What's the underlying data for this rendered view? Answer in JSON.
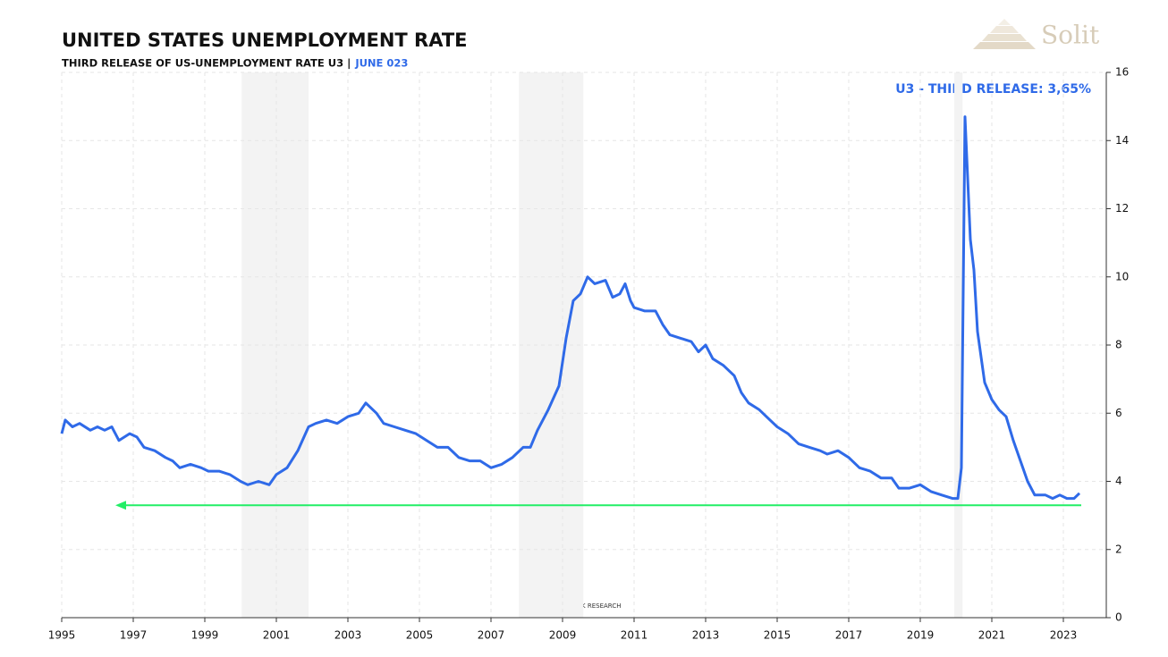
{
  "chart_data": {
    "type": "line",
    "title": "UNITED STATES UNEMPLOYMENT RATE",
    "subtitle": "THIRD RELEASE OF US-UNEMPLOYMENT RATE U3 |",
    "subtitle_highlight": "JUNE 023",
    "annotation": "U3 - THIRD RELEASE: 3,65%",
    "watermark": "BLASCHZOK  RESEARCH",
    "logo": "Solit",
    "xlim": [
      1995,
      2024.2
    ],
    "xticks": [
      1995,
      1997,
      1999,
      2001,
      2003,
      2005,
      2007,
      2009,
      2011,
      2013,
      2015,
      2017,
      2019,
      2021,
      2023
    ],
    "ylim": [
      0,
      16
    ],
    "yticks": [
      0,
      2,
      4,
      6,
      8,
      10,
      12,
      14,
      16
    ],
    "grid": true,
    "shaded": [
      [
        2000.03,
        2001.9
      ],
      [
        2007.78,
        2009.58
      ],
      [
        2019.95,
        2020.18
      ]
    ],
    "reference_line": {
      "value": 3.3,
      "x": [
        2023.5,
        1996.5
      ],
      "color": "#22ee66"
    },
    "series": [
      {
        "name": "U3",
        "color": "#2f6ae8",
        "x": [
          1995.0,
          1995.1,
          1995.3,
          1995.5,
          1995.8,
          1996.0,
          1996.2,
          1996.4,
          1996.6,
          1996.9,
          1997.1,
          1997.3,
          1997.6,
          1997.9,
          1998.1,
          1998.3,
          1998.6,
          1998.9,
          1999.1,
          1999.4,
          1999.7,
          2000.0,
          2000.2,
          2000.5,
          2000.8,
          2001.0,
          2001.3,
          2001.6,
          2001.9,
          2002.1,
          2002.4,
          2002.7,
          2003.0,
          2003.3,
          2003.5,
          2003.8,
          2004.0,
          2004.3,
          2004.6,
          2004.9,
          2005.2,
          2005.5,
          2005.8,
          2006.1,
          2006.4,
          2006.7,
          2007.0,
          2007.3,
          2007.6,
          2007.9,
          2008.1,
          2008.3,
          2008.6,
          2008.9,
          2009.1,
          2009.3,
          2009.5,
          2009.7,
          2009.9,
          2010.2,
          2010.4,
          2010.6,
          2010.75,
          2010.9,
          2011.0,
          2011.3,
          2011.6,
          2011.8,
          2012.0,
          2012.3,
          2012.6,
          2012.8,
          2013.0,
          2013.2,
          2013.5,
          2013.8,
          2014.0,
          2014.2,
          2014.5,
          2014.8,
          2015.0,
          2015.3,
          2015.6,
          2015.9,
          2016.2,
          2016.4,
          2016.7,
          2017.0,
          2017.3,
          2017.6,
          2017.9,
          2018.2,
          2018.4,
          2018.7,
          2019.0,
          2019.3,
          2019.6,
          2019.9,
          2020.05,
          2020.15,
          2020.25,
          2020.4,
          2020.5,
          2020.6,
          2020.8,
          2021.0,
          2021.2,
          2021.4,
          2021.6,
          2021.8,
          2022.0,
          2022.2,
          2022.5,
          2022.7,
          2022.9,
          2023.1,
          2023.3,
          2023.45
        ],
        "values": [
          5.4,
          5.8,
          5.6,
          5.7,
          5.5,
          5.6,
          5.5,
          5.6,
          5.2,
          5.4,
          5.3,
          5.0,
          4.9,
          4.7,
          4.6,
          4.4,
          4.5,
          4.4,
          4.3,
          4.3,
          4.2,
          4.0,
          3.9,
          4.0,
          3.9,
          4.2,
          4.4,
          4.9,
          5.6,
          5.7,
          5.8,
          5.7,
          5.9,
          6.0,
          6.3,
          6.0,
          5.7,
          5.6,
          5.5,
          5.4,
          5.2,
          5.0,
          5.0,
          4.7,
          4.6,
          4.6,
          4.4,
          4.5,
          4.7,
          5.0,
          5.0,
          5.5,
          6.1,
          6.8,
          8.2,
          9.3,
          9.5,
          10.0,
          9.8,
          9.9,
          9.4,
          9.5,
          9.8,
          9.3,
          9.1,
          9.0,
          9.0,
          8.6,
          8.3,
          8.2,
          8.1,
          7.8,
          8.0,
          7.6,
          7.4,
          7.1,
          6.6,
          6.3,
          6.1,
          5.8,
          5.6,
          5.4,
          5.1,
          5.0,
          4.9,
          4.8,
          4.9,
          4.7,
          4.4,
          4.3,
          4.1,
          4.1,
          3.8,
          3.8,
          3.9,
          3.7,
          3.6,
          3.5,
          3.5,
          4.4,
          14.7,
          11.1,
          10.2,
          8.4,
          6.9,
          6.4,
          6.1,
          5.9,
          5.2,
          4.6,
          4.0,
          3.6,
          3.6,
          3.5,
          3.6,
          3.5,
          3.5,
          3.65
        ]
      }
    ]
  }
}
